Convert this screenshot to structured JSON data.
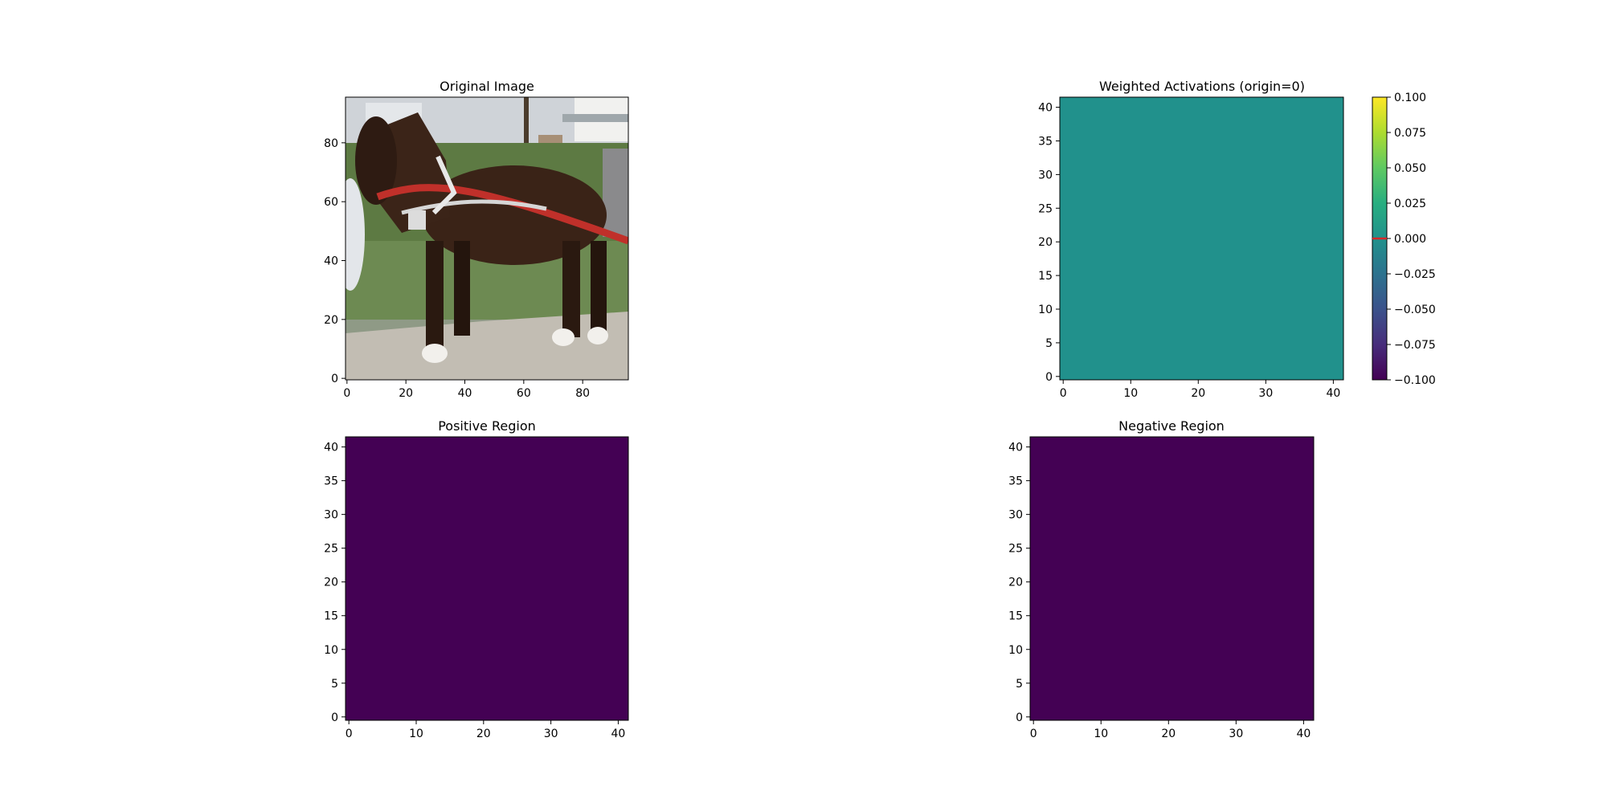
{
  "figure": {
    "background": "#ffffff"
  },
  "chart_data": [
    {
      "id": "original",
      "type": "image",
      "title": "Original Image",
      "xlim": [
        -0.5,
        95.5
      ],
      "ylim": [
        95.5,
        -0.5
      ],
      "xticks": [
        0,
        20,
        40,
        60,
        80
      ],
      "yticks": [
        0,
        20,
        40,
        60,
        80
      ],
      "content": "photo-horse-with-harness",
      "colors": {
        "sky": "#cfd3d8",
        "grass": "#5d7a43",
        "path": "#c2bdb3",
        "horse": "#3a2317",
        "harness": "#c0302a"
      }
    },
    {
      "id": "weighted",
      "type": "heatmap",
      "title": "Weighted Activations (origin=0)",
      "xlim": [
        -0.5,
        41.5
      ],
      "ylim": [
        41.5,
        -0.5
      ],
      "xticks": [
        0,
        10,
        20,
        30,
        40
      ],
      "yticks": [
        0,
        5,
        10,
        15,
        20,
        25,
        30,
        35,
        40
      ],
      "uniform_value": 0.0,
      "colormap": "viridis",
      "colorbar": {
        "vmin": -0.1,
        "vmax": 0.1,
        "ticks": [
          "0.100",
          "0.075",
          "0.050",
          "0.025",
          "0.000",
          "−0.025",
          "−0.050",
          "−0.075",
          "−0.100"
        ],
        "tick_values": [
          0.1,
          0.075,
          0.05,
          0.025,
          0.0,
          -0.025,
          -0.05,
          -0.075,
          -0.1
        ],
        "origin_marker": 0.0,
        "origin_color": "#d62728"
      }
    },
    {
      "id": "positive",
      "type": "heatmap",
      "title": "Positive Region",
      "xlim": [
        -0.5,
        41.5
      ],
      "ylim": [
        41.5,
        -0.5
      ],
      "xticks": [
        0,
        10,
        20,
        30,
        40
      ],
      "yticks": [
        0,
        5,
        10,
        15,
        20,
        25,
        30,
        35,
        40
      ],
      "uniform_value": 0,
      "colormap": "viridis",
      "fill": "#440154"
    },
    {
      "id": "negative",
      "type": "heatmap",
      "title": "Negative Region",
      "xlim": [
        -0.5,
        41.5
      ],
      "ylim": [
        41.5,
        -0.5
      ],
      "xticks": [
        0,
        10,
        20,
        30,
        40
      ],
      "yticks": [
        0,
        5,
        10,
        15,
        20,
        25,
        30,
        35,
        40
      ],
      "uniform_value": 0,
      "colormap": "viridis",
      "fill": "#440154"
    }
  ]
}
